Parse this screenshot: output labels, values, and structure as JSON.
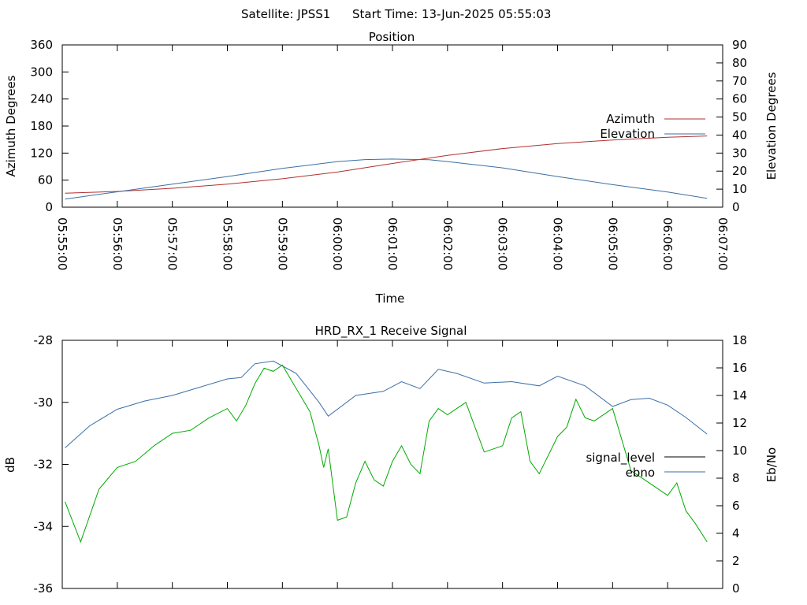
{
  "header": {
    "satellite_label": "Satellite: JPSS1",
    "start_time_label": "Start Time: 13-Jun-2025 05:55:03"
  },
  "chart_data": [
    {
      "type": "line",
      "title": "Position",
      "xlabel": "Time",
      "ylabel": "Azimuth Degrees",
      "y2label": "Elevation Degrees",
      "x_tick_labels": [
        "05:55:00",
        "05:56:00",
        "05:57:00",
        "05:58:00",
        "05:59:00",
        "06:00:00",
        "06:01:00",
        "06:02:00",
        "06:03:00",
        "06:04:00",
        "06:05:00",
        "06:06:00",
        "06:07:00"
      ],
      "xlim": [
        "05:55:00",
        "06:07:00"
      ],
      "ylim": [
        0,
        360
      ],
      "y2lim": [
        0,
        90
      ],
      "y_ticks": [
        0,
        60,
        120,
        180,
        240,
        300,
        360
      ],
      "y2_ticks": [
        0,
        10,
        20,
        30,
        40,
        50,
        60,
        70,
        80,
        90
      ],
      "grid": false,
      "legend_position": "right",
      "series": [
        {
          "name": "Azimuth",
          "axis": "left",
          "color": "#b03030",
          "x": [
            "05:55:03",
            "05:56:00",
            "05:57:00",
            "05:58:00",
            "05:59:00",
            "06:00:00",
            "06:01:00",
            "06:02:00",
            "06:03:00",
            "06:04:00",
            "06:05:00",
            "06:06:00",
            "06:06:43"
          ],
          "values": [
            31,
            35,
            42,
            51,
            63,
            78,
            97,
            115,
            130,
            141,
            149,
            155,
            158
          ]
        },
        {
          "name": "Elevation",
          "axis": "right",
          "color": "#3a6ea5",
          "x": [
            "05:55:03",
            "05:56:00",
            "05:57:00",
            "05:58:00",
            "05:59:00",
            "06:00:00",
            "06:00:30",
            "06:01:00",
            "06:01:40",
            "06:02:00",
            "06:03:00",
            "06:04:00",
            "06:05:00",
            "06:06:00",
            "06:06:43"
          ],
          "values": [
            4.5,
            8.5,
            12.8,
            17.0,
            21.5,
            25.3,
            26.4,
            26.7,
            26.3,
            25.3,
            21.8,
            17.0,
            12.5,
            8.4,
            4.9
          ]
        }
      ]
    },
    {
      "type": "line",
      "title": "HRD_RX_1 Receive Signal",
      "xlabel": "",
      "ylabel": "dB",
      "y2label": "Eb/No",
      "xlim": [
        "05:55:00",
        "06:07:00"
      ],
      "ylim": [
        -36,
        -28
      ],
      "y2lim": [
        0,
        18
      ],
      "y_ticks": [
        -36,
        -34,
        -32,
        -30,
        -28
      ],
      "y2_ticks": [
        0,
        2,
        4,
        6,
        8,
        10,
        12,
        14,
        16,
        18
      ],
      "grid": false,
      "legend_position": "right",
      "series": [
        {
          "name": "signal_level",
          "axis": "left",
          "color": "#000000",
          "x": [],
          "values": []
        },
        {
          "name": "ebno",
          "axis": "right",
          "color": "#3a6ea5",
          "x": [
            "05:55:03",
            "05:55:30",
            "05:56:00",
            "05:56:30",
            "05:57:00",
            "05:57:30",
            "05:58:00",
            "05:58:15",
            "05:58:30",
            "05:58:50",
            "05:59:15",
            "05:59:40",
            "05:59:50",
            "06:00:20",
            "06:00:50",
            "06:01:10",
            "06:01:30",
            "06:01:50",
            "06:02:10",
            "06:02:40",
            "06:03:10",
            "06:03:40",
            "06:04:00",
            "06:04:30",
            "06:05:00",
            "06:05:20",
            "06:05:40",
            "06:06:00",
            "06:06:20",
            "06:06:43"
          ],
          "values": [
            10.2,
            11.8,
            13.0,
            13.6,
            14.0,
            14.6,
            15.2,
            15.3,
            16.3,
            16.5,
            15.6,
            13.5,
            12.5,
            14.0,
            14.3,
            15.0,
            14.5,
            15.9,
            15.6,
            14.9,
            15.0,
            14.7,
            15.4,
            14.7,
            13.2,
            13.7,
            13.8,
            13.3,
            12.4,
            11.2
          ]
        },
        {
          "name": "",
          "axis": "left",
          "color": "#00aa00",
          "x": [
            "05:55:03",
            "05:55:20",
            "05:55:40",
            "05:56:00",
            "05:56:20",
            "05:56:40",
            "05:57:00",
            "05:57:20",
            "05:57:40",
            "05:58:00",
            "05:58:10",
            "05:58:20",
            "05:58:30",
            "05:58:40",
            "05:58:50",
            "05:59:00",
            "05:59:10",
            "05:59:20",
            "05:59:30",
            "05:59:40",
            "05:59:45",
            "05:59:50",
            "06:00:00",
            "06:00:10",
            "06:00:20",
            "06:00:30",
            "06:00:40",
            "06:00:50",
            "06:01:00",
            "06:01:10",
            "06:01:20",
            "06:01:30",
            "06:01:40",
            "06:01:50",
            "06:02:00",
            "06:02:20",
            "06:02:40",
            "06:03:00",
            "06:03:10",
            "06:03:20",
            "06:03:30",
            "06:03:40",
            "06:03:50",
            "06:04:00",
            "06:04:10",
            "06:04:20",
            "06:04:30",
            "06:04:40",
            "06:05:00",
            "06:05:20",
            "06:05:40",
            "06:06:00",
            "06:06:10",
            "06:06:20",
            "06:06:30",
            "06:06:43"
          ],
          "values": [
            -33.2,
            -34.5,
            -32.8,
            -32.1,
            -31.9,
            -31.4,
            -31.0,
            -30.9,
            -30.5,
            -30.2,
            -30.6,
            -30.1,
            -29.4,
            -28.9,
            -29.0,
            -28.8,
            -29.3,
            -29.8,
            -30.3,
            -31.4,
            -32.1,
            -31.5,
            -33.8,
            -33.7,
            -32.6,
            -31.9,
            -32.5,
            -32.7,
            -31.9,
            -31.4,
            -32.0,
            -32.3,
            -30.6,
            -30.2,
            -30.4,
            -30.0,
            -31.6,
            -31.4,
            -30.5,
            -30.3,
            -31.9,
            -32.3,
            -31.7,
            -31.1,
            -30.8,
            -29.9,
            -30.5,
            -30.6,
            -30.2,
            -32.2,
            -32.6,
            -33.0,
            -32.6,
            -33.5,
            -33.9,
            -34.5
          ]
        }
      ]
    }
  ]
}
